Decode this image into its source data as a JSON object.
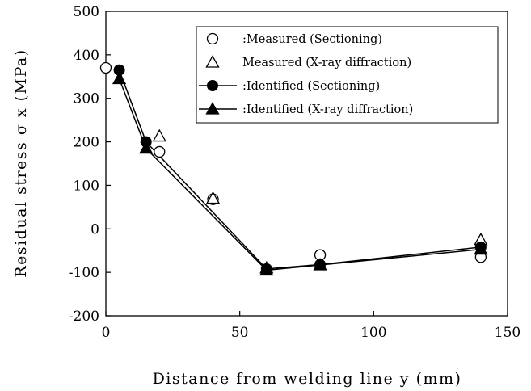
{
  "chart_data": {
    "type": "scatter",
    "title": "",
    "xlabel": "Distance from welding line y (mm)",
    "ylabel": "Residual stress σ x (MPa)",
    "xlim": [
      0,
      150
    ],
    "ylim": [
      -200,
      500
    ],
    "xticks": [
      "0",
      "50",
      "100",
      "150"
    ],
    "yticks": [
      "500",
      "400",
      "300",
      "200",
      "100",
      "0",
      "-100",
      "-200"
    ],
    "grid": false,
    "legend_position": "top-right",
    "series": [
      {
        "name": ":Measured (Sectioning)",
        "marker": "open-circle",
        "line": false,
        "points": [
          [
            0,
            370
          ],
          [
            20,
            177
          ],
          [
            40,
            68
          ],
          [
            80,
            -60
          ],
          [
            140,
            -65
          ]
        ]
      },
      {
        "name": "Measured (X-ray diffraction)",
        "marker": "open-triangle",
        "line": false,
        "points": [
          [
            20,
            213
          ],
          [
            40,
            70
          ],
          [
            60,
            -90
          ],
          [
            140,
            -25
          ]
        ]
      },
      {
        "name": ":Identified (Sectioning)",
        "marker": "filled-circle",
        "line": true,
        "points": [
          [
            5,
            365
          ],
          [
            15,
            200
          ],
          [
            60,
            -92
          ],
          [
            80,
            -82
          ],
          [
            140,
            -42
          ]
        ]
      },
      {
        "name": ":Identified (X-ray diffraction)",
        "marker": "filled-triangle",
        "line": true,
        "points": [
          [
            5,
            345
          ],
          [
            15,
            185
          ],
          [
            60,
            -95
          ],
          [
            80,
            -83
          ],
          [
            140,
            -47
          ]
        ]
      }
    ]
  }
}
